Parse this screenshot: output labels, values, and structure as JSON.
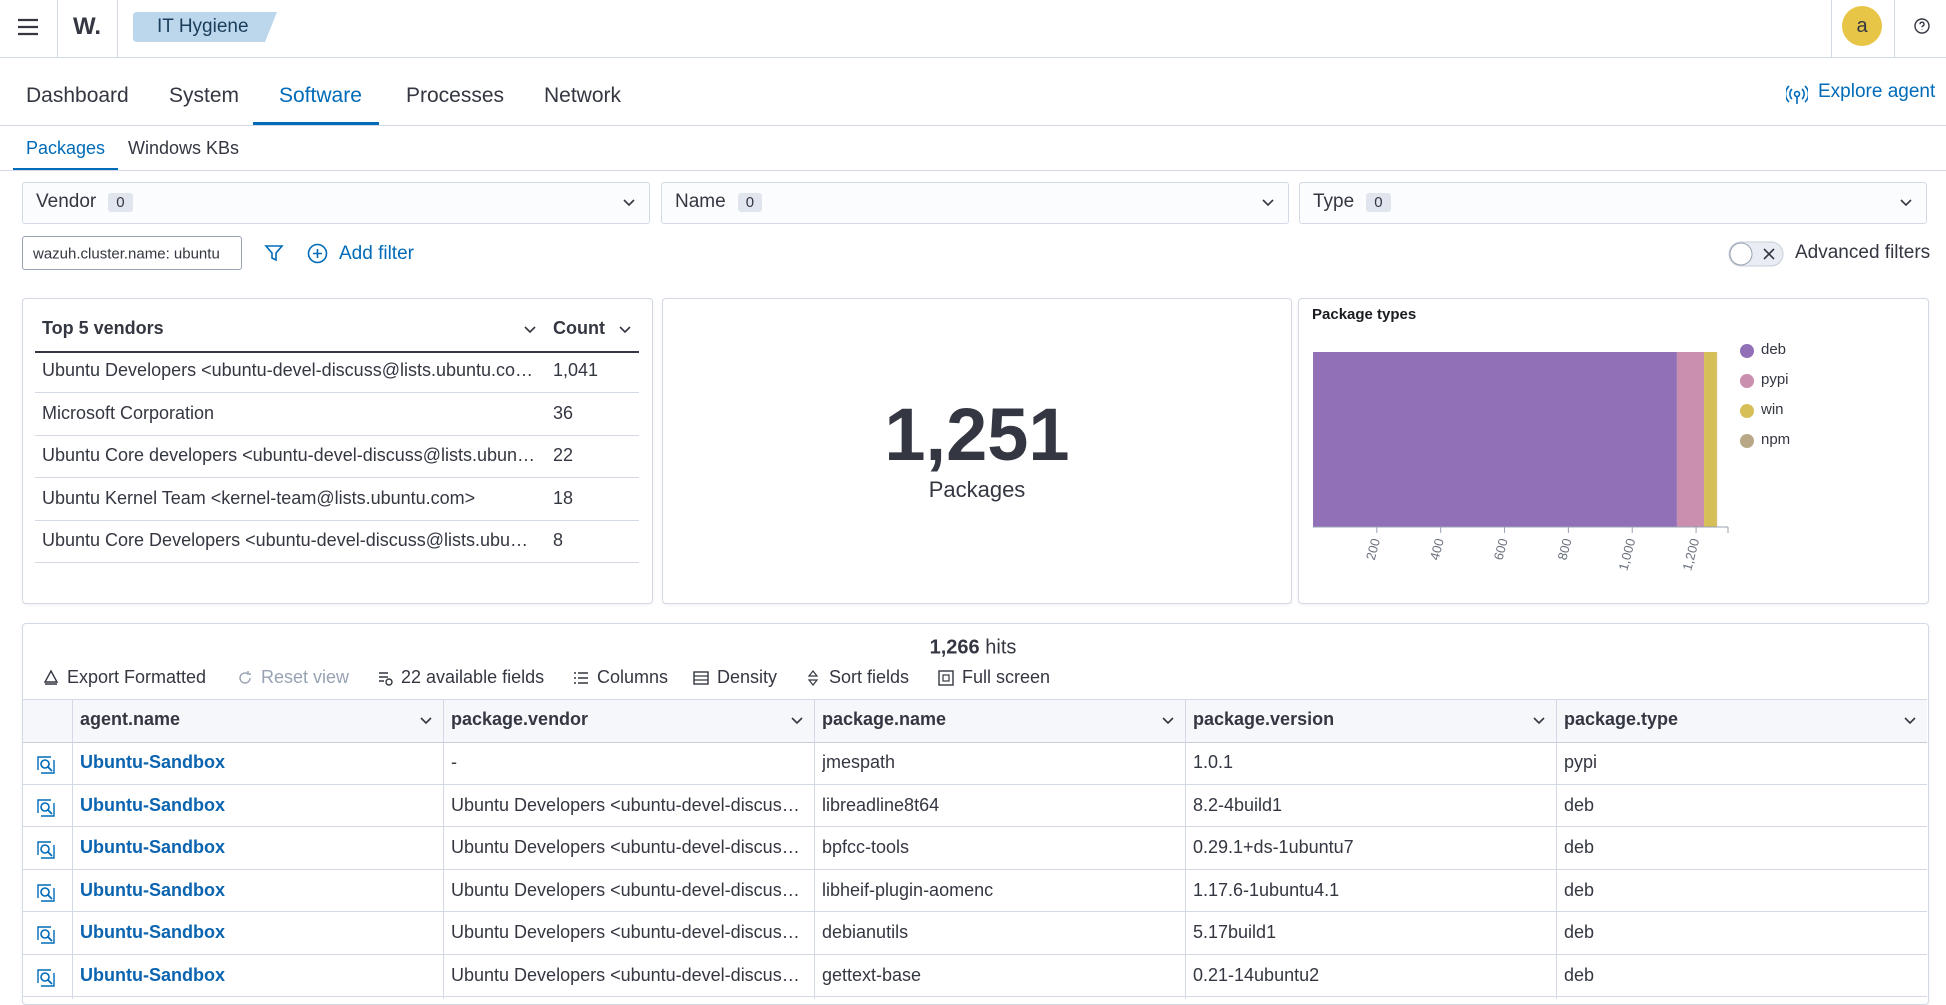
{
  "header": {
    "logo": "W.",
    "app": "IT Hygiene",
    "avatar": "a"
  },
  "tabs": {
    "items": [
      "Dashboard",
      "System",
      "Software",
      "Processes",
      "Network"
    ],
    "active": 2,
    "explore": "Explore agent"
  },
  "subtabs": {
    "items": [
      "Packages",
      "Windows KBs"
    ],
    "active": 0
  },
  "filters": [
    {
      "label": "Vendor",
      "count": "0"
    },
    {
      "label": "Name",
      "count": "0"
    },
    {
      "label": "Type",
      "count": "0"
    }
  ],
  "query": "wazuh.cluster.name: ubuntu",
  "add_filter": "Add filter",
  "advanced": "Advanced filters",
  "vendors_table": {
    "headers": [
      "Top 5 vendors",
      "Count"
    ],
    "rows": [
      [
        "Ubuntu Developers <ubuntu-devel-discuss@lists.ubuntu.com>",
        "1,041"
      ],
      [
        "Microsoft Corporation",
        "36"
      ],
      [
        "Ubuntu Core developers <ubuntu-devel-discuss@lists.ubuntu.com>",
        "22"
      ],
      [
        "Ubuntu Kernel Team <kernel-team@lists.ubuntu.com>",
        "18"
      ],
      [
        "Ubuntu Core Developers <ubuntu-devel-discuss@lists.ubuntu.com>",
        "8"
      ]
    ]
  },
  "metric": {
    "value": "1,251",
    "label": "Packages"
  },
  "chart_data": {
    "type": "stacked-bar-horizontal",
    "title": "Package types",
    "categories": [
      null
    ],
    "series": [
      {
        "name": "deb",
        "color": "#9170b8",
        "values": [
          1140
        ]
      },
      {
        "name": "pypi",
        "color": "#ca8eae",
        "values": [
          85
        ]
      },
      {
        "name": "win",
        "color": "#d6bf57",
        "values": [
          40
        ]
      },
      {
        "name": "npm",
        "color": "#b9a888",
        "values": [
          1
        ]
      }
    ],
    "xlim": [
      0,
      1300
    ],
    "xticks": [
      200,
      400,
      600,
      800,
      {
        "value": 1000,
        "label": "1,000"
      },
      {
        "value": 1200,
        "label": "1,200"
      }
    ],
    "legend": "right"
  },
  "grid": {
    "hits": "1,266",
    "hits_label": "hits",
    "toolbar": [
      "Export Formatted",
      "Reset view",
      "22 available fields",
      "Columns",
      "Density",
      "Sort fields",
      "Full screen"
    ],
    "columns": [
      "agent.name",
      "package.vendor",
      "package.name",
      "package.version",
      "package.type"
    ],
    "rows": [
      [
        "Ubuntu-Sandbox",
        "-",
        "jmespath",
        "1.0.1",
        "pypi"
      ],
      [
        "Ubuntu-Sandbox",
        "Ubuntu Developers <ubuntu-devel-discuss@lists.ubuntu.com>",
        "libreadline8t64",
        "8.2-4build1",
        "deb"
      ],
      [
        "Ubuntu-Sandbox",
        "Ubuntu Developers <ubuntu-devel-discuss@lists.ubuntu.com>",
        "bpfcc-tools",
        "0.29.1+ds-1ubuntu7",
        "deb"
      ],
      [
        "Ubuntu-Sandbox",
        "Ubuntu Developers <ubuntu-devel-discuss@lists.ubuntu.com>",
        "libheif-plugin-aomenc",
        "1.17.6-1ubuntu4.1",
        "deb"
      ],
      [
        "Ubuntu-Sandbox",
        "Ubuntu Developers <ubuntu-devel-discuss@lists.ubuntu.com>",
        "debianutils",
        "5.17build1",
        "deb"
      ],
      [
        "Ubuntu-Sandbox",
        "Ubuntu Developers <ubuntu-devel-discuss@lists.ubuntu.com>",
        "gettext-base",
        "0.21-14ubuntu2",
        "deb"
      ]
    ]
  }
}
